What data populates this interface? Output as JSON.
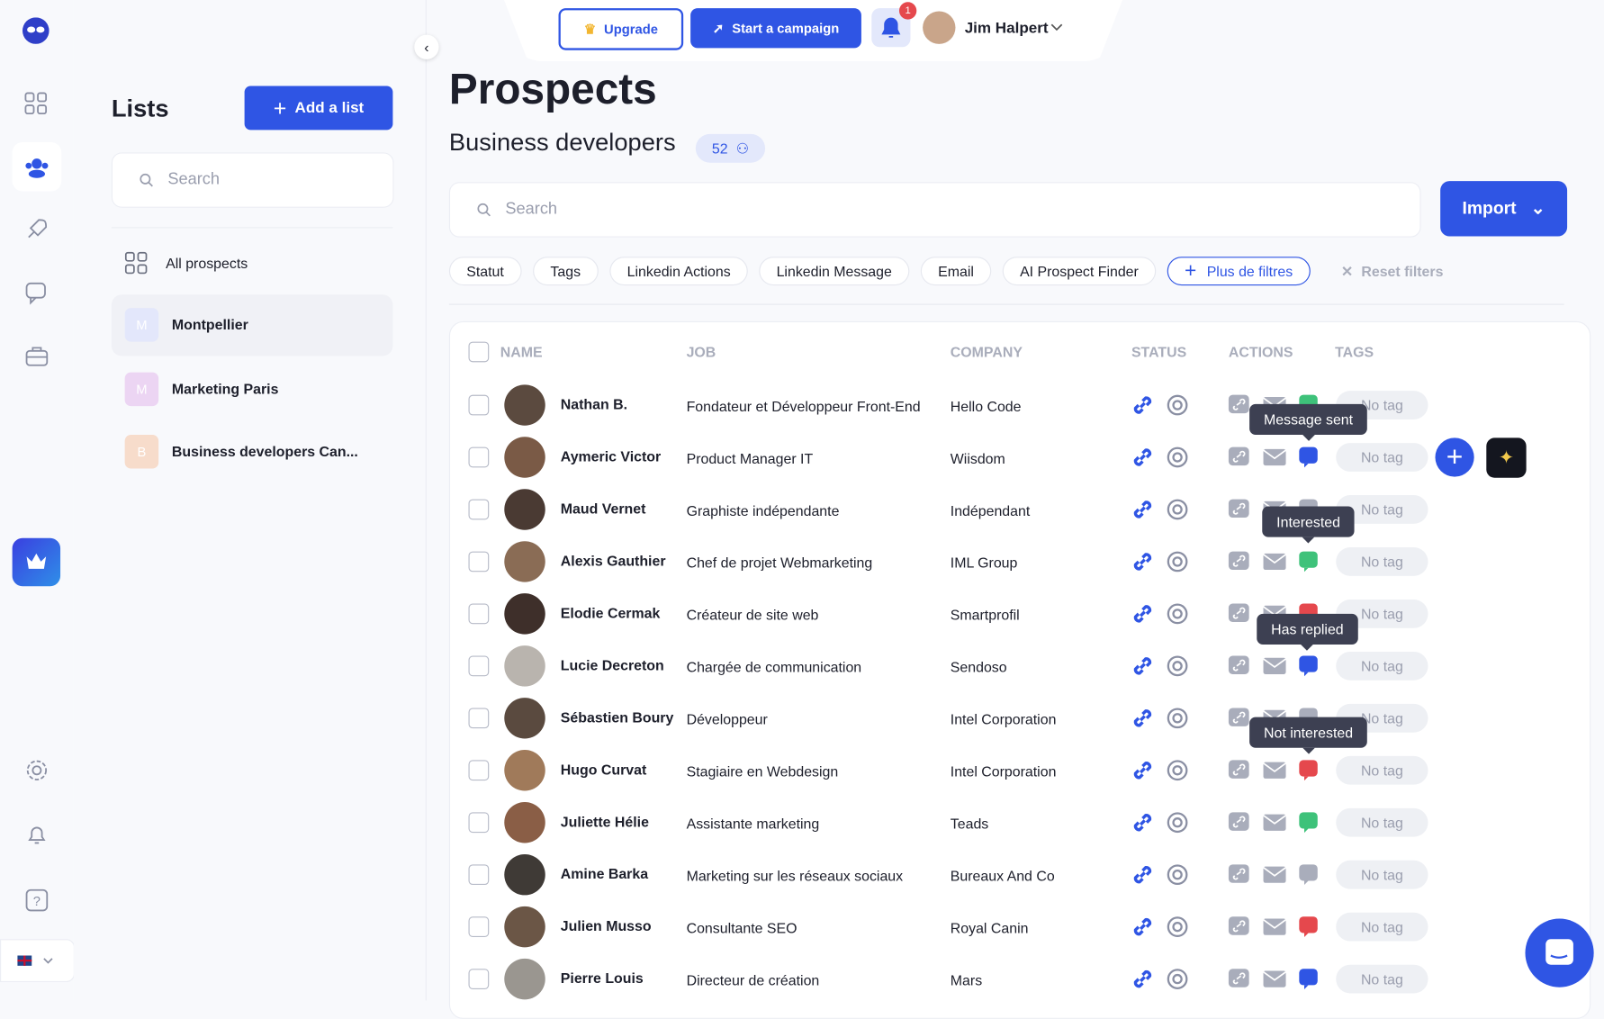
{
  "topbar": {
    "upgrade": "Upgrade",
    "campaign": "Start a campaign",
    "notifications": "1",
    "user": "Jim Halpert"
  },
  "lists_panel": {
    "title": "Lists",
    "add_button": "Add a list",
    "search_placeholder": "Search",
    "items": [
      {
        "label": "All prospects",
        "initial": null,
        "color": null
      },
      {
        "label": "Montpellier",
        "initial": "M",
        "color": "#e3e7fb"
      },
      {
        "label": "Marketing Paris",
        "initial": "M",
        "color": "#ecd5f3"
      },
      {
        "label": "Business developers Can...",
        "initial": "B",
        "color": "#f7dccb"
      }
    ]
  },
  "main": {
    "title": "Prospects",
    "subtitle": "Business developers",
    "count": "52",
    "search_placeholder": "Search",
    "import": "Import",
    "filters": [
      "Statut",
      "Tags",
      "Linkedin Actions",
      "Linkedin Message",
      "Email",
      "AI Prospect Finder"
    ],
    "more_filters": "Plus de filtres",
    "reset": "Reset filters"
  },
  "table": {
    "columns": [
      "NAME",
      "JOB",
      "COMPANY",
      "STATUS",
      "ACTIONS",
      "TAGS"
    ],
    "rows": [
      {
        "name": "Nathan B.",
        "job": "Fondateur et Développeur Front-End",
        "company": "Hello Code",
        "tag": "No tag",
        "message_color": "#3ec27a"
      },
      {
        "name": "Aymeric Victor",
        "job": "Product Manager IT",
        "company": "Wiisdom",
        "tag": "No tag",
        "message_color": "#2f55e4"
      },
      {
        "name": "Maud Vernet",
        "job": "Graphiste indépendante",
        "company": "Indépendant",
        "tag": "No tag",
        "message_color": "#a9adbb"
      },
      {
        "name": "Alexis Gauthier",
        "job": "Chef de projet Webmarketing",
        "company": "IML Group",
        "tag": "No tag",
        "message_color": "#3ec27a"
      },
      {
        "name": "Elodie Cermak",
        "job": "Créateur de site web",
        "company": "Smartprofil",
        "tag": "No tag",
        "message_color": "#e5484d"
      },
      {
        "name": "Lucie Decreton",
        "job": "Chargée de communication",
        "company": "Sendoso",
        "tag": "No tag",
        "message_color": "#2f55e4"
      },
      {
        "name": "Sébastien Boury",
        "job": "Développeur",
        "company": "Intel Corporation",
        "tag": "No tag",
        "message_color": "#a9adbb"
      },
      {
        "name": "Hugo Curvat",
        "job": "Stagiaire en Webdesign",
        "company": "Intel Corporation",
        "tag": "No tag",
        "message_color": "#e5484d"
      },
      {
        "name": "Juliette Hélie",
        "job": "Assistante marketing",
        "company": "Teads",
        "tag": "No tag",
        "message_color": "#3ec27a"
      },
      {
        "name": "Amine Barka",
        "job": "Marketing sur les réseaux sociaux",
        "company": "Bureaux And Co",
        "tag": "No tag",
        "message_color": "#a9adbb"
      },
      {
        "name": "Julien Musso",
        "job": "Consultante SEO",
        "company": "Royal Canin",
        "tag": "No tag",
        "message_color": "#e5484d"
      },
      {
        "name": "Pierre Louis",
        "job": "Directeur de création",
        "company": "Mars",
        "tag": "No tag",
        "message_color": "#2f55e4"
      }
    ]
  },
  "tooltips": [
    "Message sent",
    "Interested",
    "Has replied",
    "Not interested"
  ]
}
